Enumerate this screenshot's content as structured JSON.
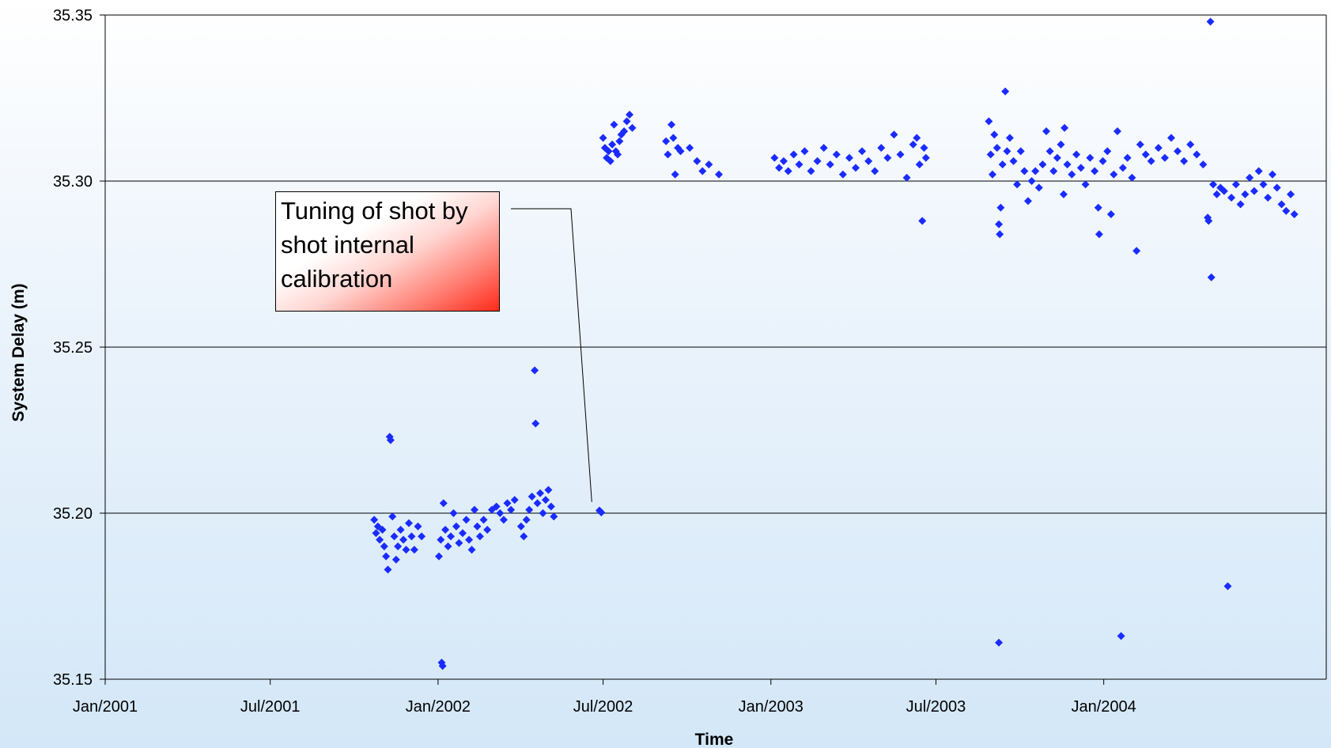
{
  "chart_data": {
    "type": "scatter",
    "title": "",
    "xlabel": "Time",
    "ylabel": "System Delay (m)",
    "ylim": [
      35.15,
      35.35
    ],
    "xlim": [
      "2001-01-01",
      "2004-09-01"
    ],
    "y_ticks": [
      "35.35",
      "35.30",
      "35.25",
      "35.20",
      "35.15"
    ],
    "x_ticks": [
      "Jan/2001",
      "Jul/2001",
      "Jan/2002",
      "Jul/2002",
      "Jan/2003",
      "Jul/2003",
      "Jan/2004"
    ],
    "grid": "horizontal",
    "marker": "diamond",
    "colors": {
      "marker": "#1a2bff",
      "grid": "#000000"
    },
    "annotation": {
      "text": "Tuning of shot by shot internal calibration",
      "target": {
        "x": "2002-06-29",
        "y": 35.2005
      }
    },
    "series": [
      {
        "points": [
          [
            "2001-10-23",
            35.198
          ],
          [
            "2001-10-25",
            35.194
          ],
          [
            "2001-10-27",
            35.196
          ],
          [
            "2001-10-29",
            35.192
          ],
          [
            "2001-11-01",
            35.195
          ],
          [
            "2001-11-03",
            35.19
          ],
          [
            "2001-11-05",
            35.187
          ],
          [
            "2001-11-07",
            35.183
          ],
          [
            "2001-11-09",
            35.223
          ],
          [
            "2001-11-10",
            35.222
          ],
          [
            "2001-11-12",
            35.199
          ],
          [
            "2001-11-14",
            35.193
          ],
          [
            "2001-11-16",
            35.186
          ],
          [
            "2001-11-18",
            35.19
          ],
          [
            "2001-11-21",
            35.195
          ],
          [
            "2001-11-24",
            35.192
          ],
          [
            "2001-11-27",
            35.189
          ],
          [
            "2001-11-30",
            35.197
          ],
          [
            "2001-12-03",
            35.193
          ],
          [
            "2001-12-06",
            35.189
          ],
          [
            "2001-12-10",
            35.196
          ],
          [
            "2001-12-14",
            35.193
          ],
          [
            "2002-01-02",
            35.187
          ],
          [
            "2002-01-04",
            35.192
          ],
          [
            "2002-01-05",
            35.155
          ],
          [
            "2002-01-06",
            35.154
          ],
          [
            "2002-01-07",
            35.203
          ],
          [
            "2002-01-09",
            35.195
          ],
          [
            "2002-01-12",
            35.19
          ],
          [
            "2002-01-15",
            35.193
          ],
          [
            "2002-01-18",
            35.2
          ],
          [
            "2002-01-21",
            35.196
          ],
          [
            "2002-01-24",
            35.191
          ],
          [
            "2002-01-28",
            35.194
          ],
          [
            "2002-02-01",
            35.198
          ],
          [
            "2002-02-04",
            35.192
          ],
          [
            "2002-02-07",
            35.189
          ],
          [
            "2002-02-10",
            35.201
          ],
          [
            "2002-02-13",
            35.196
          ],
          [
            "2002-02-16",
            35.193
          ],
          [
            "2002-02-20",
            35.198
          ],
          [
            "2002-02-24",
            35.195
          ],
          [
            "2002-03-01",
            35.201
          ],
          [
            "2002-03-06",
            35.202
          ],
          [
            "2002-03-10",
            35.2
          ],
          [
            "2002-03-14",
            35.198
          ],
          [
            "2002-03-18",
            35.203
          ],
          [
            "2002-03-22",
            35.201
          ],
          [
            "2002-03-26",
            35.204
          ],
          [
            "2002-04-02",
            35.196
          ],
          [
            "2002-04-05",
            35.193
          ],
          [
            "2002-04-08",
            35.198
          ],
          [
            "2002-04-11",
            35.201
          ],
          [
            "2002-04-14",
            35.205
          ],
          [
            "2002-04-17",
            35.243
          ],
          [
            "2002-04-18",
            35.227
          ],
          [
            "2002-04-20",
            35.203
          ],
          [
            "2002-04-23",
            35.206
          ],
          [
            "2002-04-26",
            35.2
          ],
          [
            "2002-04-29",
            35.204
          ],
          [
            "2002-05-02",
            35.207
          ],
          [
            "2002-05-05",
            35.202
          ],
          [
            "2002-05-08",
            35.199
          ],
          [
            "2002-06-27",
            35.2008
          ],
          [
            "2002-06-29",
            35.2002
          ],
          [
            "2002-07-01",
            35.313
          ],
          [
            "2002-07-03",
            35.31
          ],
          [
            "2002-07-05",
            35.307
          ],
          [
            "2002-07-07",
            35.309
          ],
          [
            "2002-07-09",
            35.306
          ],
          [
            "2002-07-11",
            35.311
          ],
          [
            "2002-07-13",
            35.317
          ],
          [
            "2002-07-15",
            35.309
          ],
          [
            "2002-07-17",
            35.308
          ],
          [
            "2002-07-19",
            35.312
          ],
          [
            "2002-07-21",
            35.314
          ],
          [
            "2002-07-24",
            35.315
          ],
          [
            "2002-07-27",
            35.318
          ],
          [
            "2002-07-30",
            35.32
          ],
          [
            "2002-08-02",
            35.316
          ],
          [
            "2002-09-08",
            35.312
          ],
          [
            "2002-09-10",
            35.308
          ],
          [
            "2002-09-14",
            35.317
          ],
          [
            "2002-09-16",
            35.313
          ],
          [
            "2002-09-18",
            35.302
          ],
          [
            "2002-09-21",
            35.31
          ],
          [
            "2002-09-24",
            35.309
          ],
          [
            "2002-10-04",
            35.31
          ],
          [
            "2002-10-12",
            35.306
          ],
          [
            "2002-10-18",
            35.303
          ],
          [
            "2002-10-25",
            35.305
          ],
          [
            "2002-11-05",
            35.302
          ],
          [
            "2003-01-05",
            35.307
          ],
          [
            "2003-01-10",
            35.304
          ],
          [
            "2003-01-15",
            35.306
          ],
          [
            "2003-01-20",
            35.303
          ],
          [
            "2003-01-26",
            35.308
          ],
          [
            "2003-02-01",
            35.305
          ],
          [
            "2003-02-07",
            35.309
          ],
          [
            "2003-02-14",
            35.303
          ],
          [
            "2003-02-21",
            35.306
          ],
          [
            "2003-02-28",
            35.31
          ],
          [
            "2003-03-07",
            35.305
          ],
          [
            "2003-03-14",
            35.308
          ],
          [
            "2003-03-21",
            35.302
          ],
          [
            "2003-03-28",
            35.307
          ],
          [
            "2003-04-04",
            35.304
          ],
          [
            "2003-04-11",
            35.309
          ],
          [
            "2003-04-18",
            35.306
          ],
          [
            "2003-04-25",
            35.303
          ],
          [
            "2003-05-02",
            35.31
          ],
          [
            "2003-05-09",
            35.307
          ],
          [
            "2003-05-16",
            35.314
          ],
          [
            "2003-05-23",
            35.308
          ],
          [
            "2003-05-30",
            35.301
          ],
          [
            "2003-06-06",
            35.311
          ],
          [
            "2003-06-10",
            35.313
          ],
          [
            "2003-06-13",
            35.305
          ],
          [
            "2003-06-16",
            35.288
          ],
          [
            "2003-06-18",
            35.31
          ],
          [
            "2003-06-20",
            35.307
          ],
          [
            "2003-08-28",
            35.318
          ],
          [
            "2003-08-30",
            35.308
          ],
          [
            "2003-09-01",
            35.302
          ],
          [
            "2003-09-03",
            35.314
          ],
          [
            "2003-09-06",
            35.31
          ],
          [
            "2003-09-08",
            35.287
          ],
          [
            "2003-09-09",
            35.284
          ],
          [
            "2003-09-10",
            35.292
          ],
          [
            "2003-09-12",
            35.305
          ],
          [
            "2003-09-15",
            35.327
          ],
          [
            "2003-09-17",
            35.309
          ],
          [
            "2003-09-20",
            35.313
          ],
          [
            "2003-09-24",
            35.306
          ],
          [
            "2003-09-28",
            35.299
          ],
          [
            "2003-10-02",
            35.309
          ],
          [
            "2003-10-06",
            35.303
          ],
          [
            "2003-10-10",
            35.294
          ],
          [
            "2003-10-14",
            35.3
          ],
          [
            "2003-10-18",
            35.303
          ],
          [
            "2003-10-22",
            35.298
          ],
          [
            "2003-10-26",
            35.305
          ],
          [
            "2003-10-30",
            35.315
          ],
          [
            "2003-11-03",
            35.309
          ],
          [
            "2003-11-07",
            35.303
          ],
          [
            "2003-11-11",
            35.307
          ],
          [
            "2003-11-15",
            35.311
          ],
          [
            "2003-11-18",
            35.296
          ],
          [
            "2003-11-19",
            35.316
          ],
          [
            "2003-11-22",
            35.305
          ],
          [
            "2003-11-27",
            35.302
          ],
          [
            "2003-12-02",
            35.308
          ],
          [
            "2003-12-07",
            35.304
          ],
          [
            "2003-12-12",
            35.299
          ],
          [
            "2003-12-17",
            35.307
          ],
          [
            "2003-12-22",
            35.303
          ],
          [
            "2003-12-26",
            35.292
          ],
          [
            "2003-12-27",
            35.284
          ],
          [
            "2003-12-31",
            35.306
          ],
          [
            "2004-01-05",
            35.309
          ],
          [
            "2004-01-09",
            35.29
          ],
          [
            "2004-01-12",
            35.302
          ],
          [
            "2004-01-16",
            35.315
          ],
          [
            "2004-01-20",
            35.163
          ],
          [
            "2004-01-22",
            35.304
          ],
          [
            "2004-01-27",
            35.307
          ],
          [
            "2004-02-01",
            35.301
          ],
          [
            "2004-02-06",
            35.279
          ],
          [
            "2004-02-10",
            35.311
          ],
          [
            "2004-02-16",
            35.308
          ],
          [
            "2004-02-22",
            35.306
          ],
          [
            "2004-03-01",
            35.31
          ],
          [
            "2004-03-08",
            35.307
          ],
          [
            "2004-03-15",
            35.313
          ],
          [
            "2004-03-22",
            35.309
          ],
          [
            "2004-03-29",
            35.306
          ],
          [
            "2004-04-05",
            35.311
          ],
          [
            "2004-04-12",
            35.308
          ],
          [
            "2004-04-19",
            35.305
          ],
          [
            "2004-04-24",
            35.289
          ],
          [
            "2004-04-25",
            35.288
          ],
          [
            "2004-04-27",
            35.348
          ],
          [
            "2004-04-28",
            35.271
          ],
          [
            "2004-04-30",
            35.299
          ],
          [
            "2004-05-04",
            35.296
          ],
          [
            "2004-05-08",
            35.298
          ],
          [
            "2004-05-12",
            35.297
          ],
          [
            "2004-05-16",
            35.178
          ],
          [
            "2004-05-20",
            35.295
          ],
          [
            "2004-05-25",
            35.299
          ],
          [
            "2004-05-30",
            35.293
          ],
          [
            "2004-06-04",
            35.296
          ],
          [
            "2004-06-09",
            35.301
          ],
          [
            "2004-06-14",
            35.297
          ],
          [
            "2004-06-19",
            35.303
          ],
          [
            "2004-06-24",
            35.299
          ],
          [
            "2004-06-29",
            35.295
          ],
          [
            "2004-07-04",
            35.302
          ],
          [
            "2004-07-09",
            35.298
          ],
          [
            "2004-07-14",
            35.293
          ],
          [
            "2004-07-19",
            35.291
          ],
          [
            "2004-07-24",
            35.296
          ],
          [
            "2004-07-28",
            35.29
          ],
          [
            "2003-09-08",
            35.161
          ]
        ]
      }
    ]
  }
}
